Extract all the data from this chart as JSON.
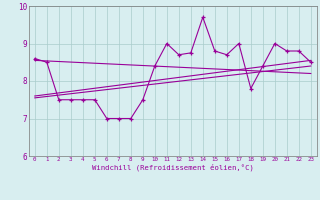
{
  "main_line_x": [
    0,
    1,
    2,
    3,
    4,
    5,
    6,
    7,
    8,
    9,
    10,
    11,
    12,
    13,
    14,
    15,
    16,
    17,
    18,
    19,
    20,
    21,
    22,
    23
  ],
  "main_line_y": [
    8.6,
    8.5,
    7.5,
    7.5,
    7.5,
    7.5,
    7.0,
    7.0,
    7.0,
    7.5,
    8.4,
    9.0,
    8.7,
    8.75,
    9.7,
    8.8,
    8.7,
    9.0,
    7.8,
    8.4,
    9.0,
    8.8,
    8.8,
    8.5
  ],
  "trend1_x": [
    0,
    23
  ],
  "trend1_y": [
    8.55,
    8.2
  ],
  "trend2_x": [
    0,
    23
  ],
  "trend2_y": [
    7.55,
    8.4
  ],
  "trend3_x": [
    0,
    23
  ],
  "trend3_y": [
    7.6,
    8.55
  ],
  "line_color": "#990099",
  "bg_color": "#d8eef0",
  "grid_color": "#aacccc",
  "xlabel": "Windchill (Refroidissement éolien,°C)",
  "xlim": [
    -0.5,
    23.5
  ],
  "ylim": [
    6,
    10
  ],
  "yticks": [
    6,
    7,
    8,
    9,
    10
  ],
  "xticks": [
    0,
    1,
    2,
    3,
    4,
    5,
    6,
    7,
    8,
    9,
    10,
    11,
    12,
    13,
    14,
    15,
    16,
    17,
    18,
    19,
    20,
    21,
    22,
    23
  ]
}
